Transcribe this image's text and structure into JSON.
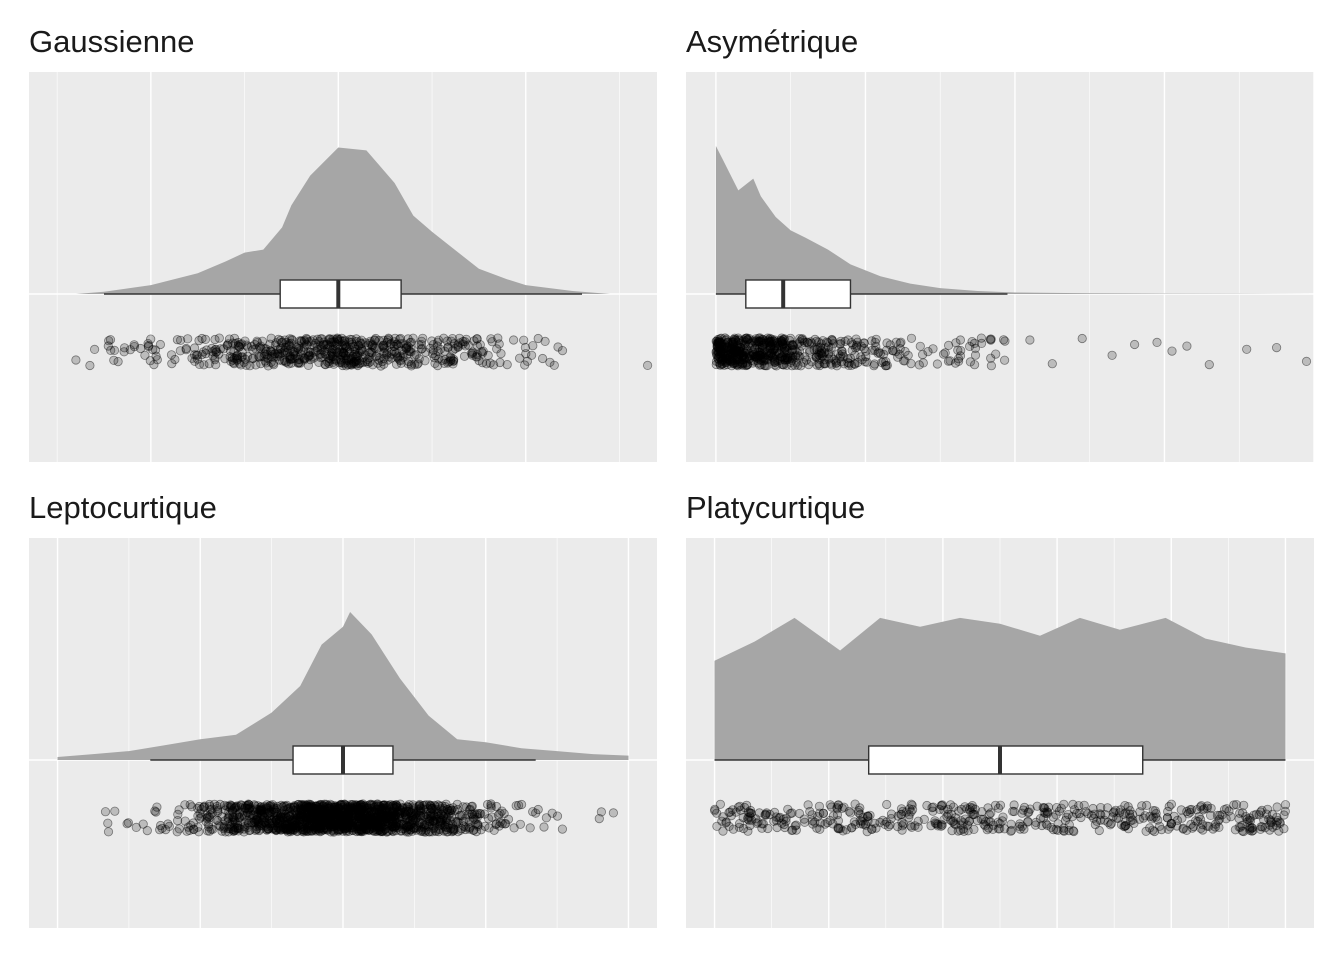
{
  "colors": {
    "panel_background": "#ebebeb",
    "grid_line": "#ffffff",
    "density_fill": "#a6a6a6",
    "box_fill": "#ffffff",
    "box_stroke": "#333333",
    "point_color": "#000000"
  },
  "chart_data": [
    {
      "type": "area",
      "subtype": "raincloud (density + boxplot + jittered points)",
      "title": "Gaussienne",
      "xlabel": "",
      "ylabel": "",
      "xlim": [
        -3.3,
        3.4
      ],
      "grid": true,
      "axis_ticks_visible": false,
      "density": {
        "x": [
          -2.8,
          -2.5,
          -2.0,
          -1.5,
          -1.2,
          -1.0,
          -0.8,
          -0.6,
          -0.5,
          -0.3,
          0.0,
          0.3,
          0.6,
          0.8,
          1.0,
          1.2,
          1.5,
          1.8,
          2.0,
          2.5,
          2.9
        ],
        "y": [
          0.0,
          0.015,
          0.06,
          0.14,
          0.22,
          0.28,
          0.3,
          0.45,
          0.6,
          0.8,
          0.99,
          0.97,
          0.75,
          0.53,
          0.42,
          0.32,
          0.17,
          0.1,
          0.06,
          0.02,
          0.0
        ]
      },
      "boxplot": {
        "min": -2.5,
        "q1": -0.62,
        "median": 0.0,
        "q3": 0.67,
        "max": 2.6
      },
      "points": {
        "n": 600,
        "distribution": "normal",
        "outliers": [
          -2.8,
          -2.65,
          -2.6,
          -2.45,
          3.3
        ]
      }
    },
    {
      "type": "area",
      "subtype": "raincloud (density + boxplot + jittered points)",
      "title": "Asymétrique",
      "xlabel": "",
      "ylabel": "",
      "xlim": [
        -0.4,
        8.0
      ],
      "grid": true,
      "axis_ticks_visible": false,
      "density": {
        "x": [
          0.0,
          0.1,
          0.3,
          0.5,
          0.6,
          0.8,
          1.0,
          1.2,
          1.5,
          1.8,
          2.2,
          2.6,
          3.0,
          3.5,
          4.0,
          5.0,
          6.0,
          7.0,
          8.0
        ],
        "y": [
          1.0,
          0.9,
          0.7,
          0.78,
          0.66,
          0.52,
          0.43,
          0.38,
          0.3,
          0.2,
          0.12,
          0.07,
          0.04,
          0.02,
          0.01,
          0.005,
          0.003,
          0.002,
          0.0
        ]
      },
      "boxplot": {
        "min": 0.0,
        "q1": 0.4,
        "median": 0.9,
        "q3": 1.8,
        "max": 3.9
      },
      "points": {
        "n": 600,
        "distribution": "exponential",
        "outliers": [
          4.2,
          4.5,
          4.9,
          5.3,
          5.6,
          5.9,
          6.1,
          6.3,
          6.6,
          7.1,
          7.5,
          7.9
        ]
      }
    },
    {
      "type": "area",
      "subtype": "raincloud (density + boxplot + jittered points)",
      "title": "Leptocurtique",
      "xlabel": "",
      "ylabel": "",
      "xlim": [
        -4.4,
        4.4
      ],
      "grid": true,
      "axis_ticks_visible": false,
      "density": {
        "x": [
          -4.0,
          -3.5,
          -3.0,
          -2.5,
          -2.0,
          -1.5,
          -1.0,
          -0.6,
          -0.3,
          0.0,
          0.1,
          0.4,
          0.8,
          1.2,
          1.6,
          2.0,
          2.5,
          3.0,
          3.5,
          4.0
        ],
        "y": [
          0.02,
          0.04,
          0.06,
          0.1,
          0.14,
          0.17,
          0.32,
          0.5,
          0.78,
          0.9,
          1.0,
          0.85,
          0.55,
          0.3,
          0.14,
          0.12,
          0.08,
          0.06,
          0.04,
          0.03
        ]
      },
      "boxplot": {
        "min": -2.7,
        "q1": -0.7,
        "median": 0.0,
        "q3": 0.7,
        "max": 2.7
      },
      "points": {
        "n": 1500,
        "distribution": "t",
        "range": [
          -4.0,
          4.0
        ]
      }
    },
    {
      "type": "area",
      "subtype": "raincloud (density + boxplot + jittered points)",
      "title": "Platycurtique",
      "xlabel": "",
      "ylabel": "",
      "xlim": [
        -0.05,
        1.05
      ],
      "grid": true,
      "axis_ticks_visible": false,
      "density": {
        "x": [
          0.0,
          0.07,
          0.14,
          0.22,
          0.29,
          0.36,
          0.43,
          0.5,
          0.57,
          0.64,
          0.71,
          0.79,
          0.86,
          0.93,
          1.0
        ],
        "y": [
          0.67,
          0.8,
          0.96,
          0.74,
          0.96,
          0.9,
          0.96,
          0.92,
          0.84,
          0.96,
          0.88,
          0.96,
          0.82,
          0.76,
          0.72
        ]
      },
      "boxplot": {
        "min": 0.0,
        "q1": 0.27,
        "median": 0.5,
        "q3": 0.75,
        "max": 1.0
      },
      "points": {
        "n": 500,
        "distribution": "uniform",
        "range": [
          0.0,
          1.0
        ]
      }
    }
  ]
}
